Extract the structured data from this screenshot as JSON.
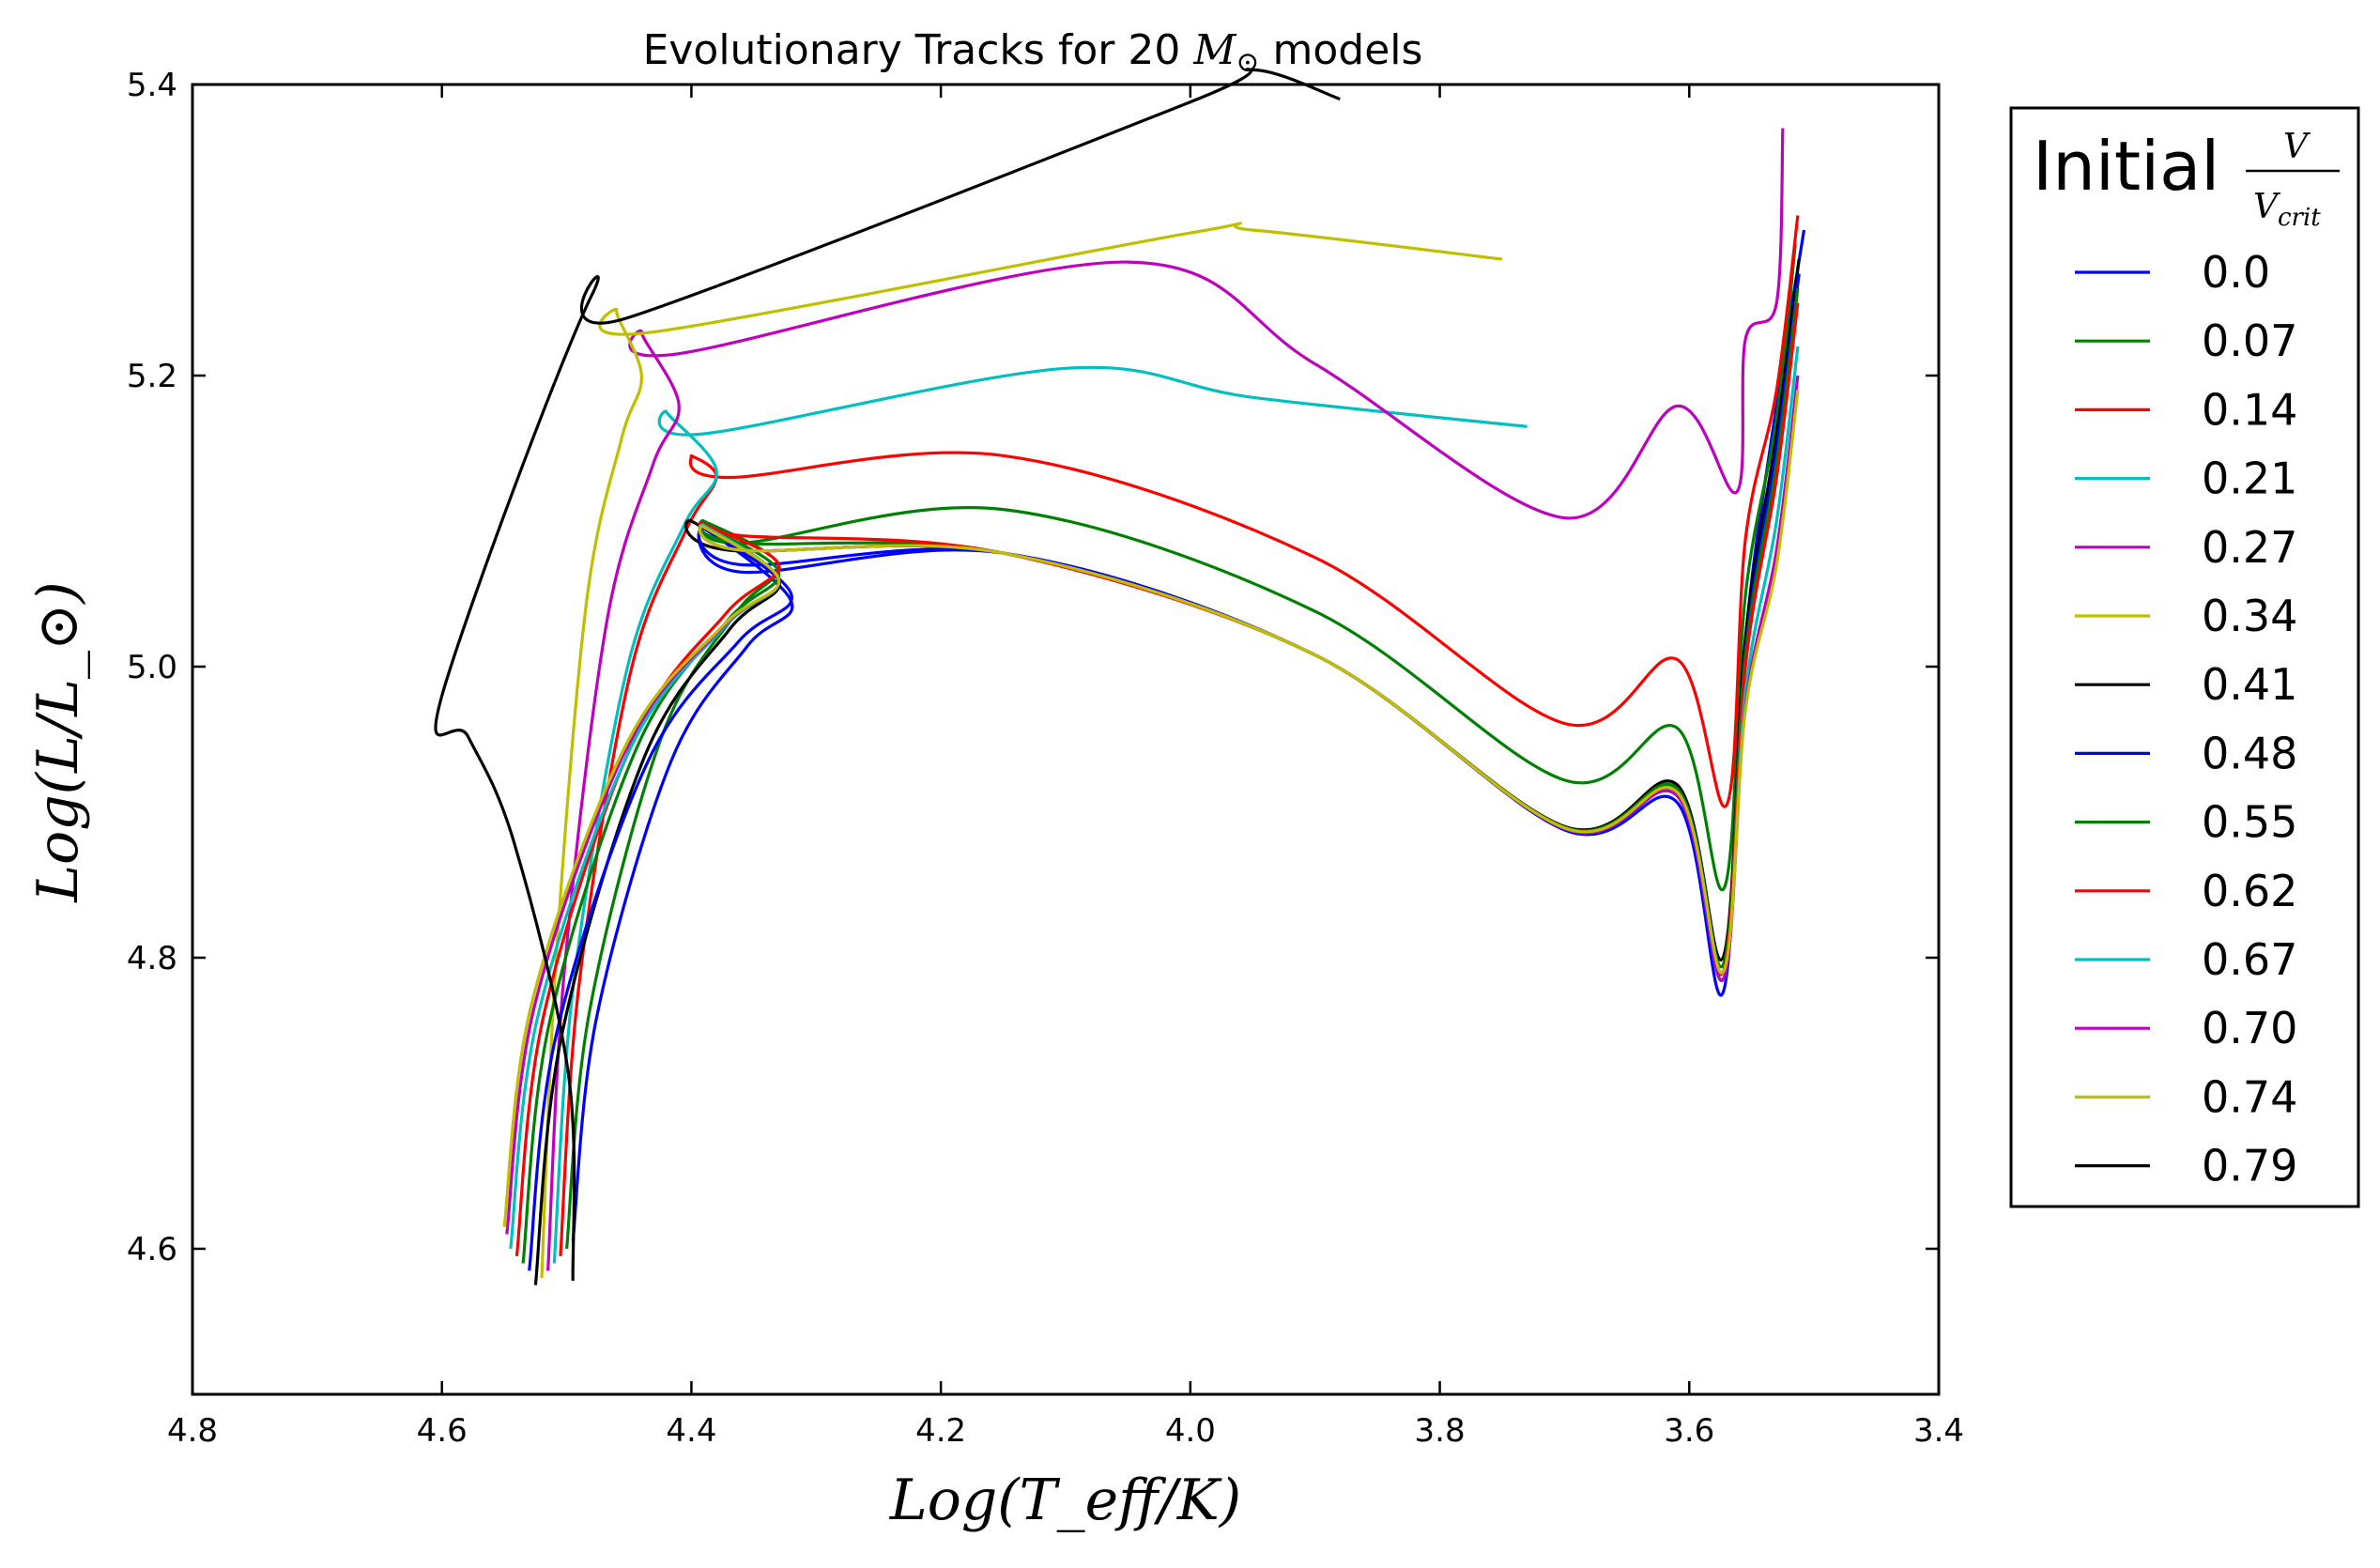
{
  "chart_data": {
    "type": "line",
    "title": {
      "prefix": "Evolutionary Tracks for 20 ",
      "math": "M",
      "math_sub": "⊙",
      "suffix": "  models"
    },
    "xlabel": "Log(T_eff/K)",
    "ylabel": "Log(L/L_⊙)",
    "xlim": [
      4.8,
      3.4
    ],
    "ylim": [
      4.5,
      5.4
    ],
    "x_ticks": [
      "4.8",
      "4.6",
      "4.4",
      "4.2",
      "4.0",
      "3.8",
      "3.6",
      "3.4"
    ],
    "y_ticks": [
      "4.6",
      "4.8",
      "5.0",
      "5.2",
      "5.4"
    ],
    "grid": false,
    "legend": {
      "placement": "outside-right",
      "title_word": "Initial",
      "title_num": "V",
      "title_den": "V",
      "title_den_sub": "crit"
    },
    "series": [
      {
        "name": "0.0",
        "color": "#0000ff",
        "zams": [
          4.495,
          4.605
        ],
        "turnoff": [
          4.32,
          5.045
        ],
        "hook": [
          4.39,
          5.095
        ],
        "trough": [
          3.573,
          4.776
        ],
        "top": [
          3.508,
          5.3
        ]
      },
      {
        "name": "0.07",
        "color": "#008000",
        "zams": [
          4.5,
          4.6
        ],
        "turnoff": [
          4.33,
          5.07
        ],
        "hook": [
          4.39,
          5.1
        ],
        "plateau": [
          4.15,
          5.108
        ],
        "trough": [
          3.572,
          4.848
        ],
        "top": [
          3.515,
          5.29
        ]
      },
      {
        "name": "0.14",
        "color": "#ff0000",
        "zams": [
          4.505,
          4.595
        ],
        "turnoff": [
          4.38,
          5.13
        ],
        "hook": [
          4.4,
          5.145
        ],
        "plateau": [
          4.15,
          5.145
        ],
        "trough": [
          3.57,
          4.905
        ],
        "top": [
          3.513,
          5.31
        ]
      },
      {
        "name": "0.21",
        "color": "#00bfbf",
        "zams": [
          4.51,
          4.59
        ],
        "turnoff": [
          4.38,
          5.135
        ],
        "hook": [
          4.42,
          5.175
        ],
        "plateau": [
          4.1,
          5.205
        ],
        "end": [
          3.73,
          5.165
        ]
      },
      {
        "name": "0.27",
        "color": "#bf00bf",
        "zams": [
          4.515,
          4.585
        ],
        "turnoff": [
          4.41,
          5.18
        ],
        "hook": [
          4.44,
          5.23
        ],
        "plateau": [
          4.05,
          5.278
        ],
        "trough": [
          3.562,
          5.12
        ],
        "top": [
          3.525,
          5.37
        ]
      },
      {
        "name": "0.34",
        "color": "#bfbf00",
        "zams": [
          4.52,
          4.58
        ],
        "turnoff": [
          4.44,
          5.2
        ],
        "hook": [
          4.46,
          5.245
        ],
        "plateau": [
          4.0,
          5.298
        ],
        "end": [
          3.75,
          5.28
        ]
      },
      {
        "name": "0.41",
        "color": "#000000",
        "zams": [
          4.525,
          4.575
        ],
        "turnoff": [
          4.33,
          5.06
        ],
        "hook": [
          4.4,
          5.1
        ],
        "trough": [
          3.573,
          4.8
        ],
        "top": [
          3.512,
          5.28
        ]
      },
      {
        "name": "0.48",
        "color": "#0000ff",
        "zams": [
          4.53,
          4.585
        ],
        "turnoff": [
          4.32,
          5.05
        ],
        "hook": [
          4.39,
          5.095
        ],
        "trough": [
          3.573,
          4.79
        ],
        "top": [
          3.512,
          5.27
        ]
      },
      {
        "name": "0.55",
        "color": "#008000",
        "zams": [
          4.535,
          4.59
        ],
        "turnoff": [
          4.33,
          5.065
        ],
        "hook": [
          4.39,
          5.097
        ],
        "trough": [
          3.573,
          4.795
        ],
        "top": [
          3.513,
          5.26
        ]
      },
      {
        "name": "0.62",
        "color": "#ff0000",
        "zams": [
          4.54,
          4.595
        ],
        "turnoff": [
          4.33,
          5.07
        ],
        "hook": [
          4.39,
          5.098
        ],
        "trough": [
          3.573,
          4.79
        ],
        "top": [
          3.513,
          5.25
        ]
      },
      {
        "name": "0.67",
        "color": "#00bfbf",
        "zams": [
          4.545,
          4.6
        ],
        "turnoff": [
          4.33,
          5.06
        ],
        "hook": [
          4.39,
          5.097
        ],
        "trough": [
          3.573,
          4.785
        ],
        "top": [
          3.513,
          5.22
        ]
      },
      {
        "name": "0.70",
        "color": "#bf00bf",
        "zams": [
          4.548,
          4.61
        ],
        "turnoff": [
          4.33,
          5.06
        ],
        "hook": [
          4.39,
          5.096
        ],
        "trough": [
          3.573,
          4.785
        ],
        "top": [
          3.513,
          5.2
        ]
      },
      {
        "name": "0.74",
        "color": "#bfbf00",
        "zams": [
          4.55,
          4.615
        ],
        "turnoff": [
          4.33,
          5.06
        ],
        "hook": [
          4.39,
          5.096
        ],
        "trough": [
          3.573,
          4.79
        ],
        "top": [
          3.513,
          5.19
        ]
      },
      {
        "name": "0.79",
        "color": "#000000",
        "zams": [
          4.495,
          4.578
        ],
        "turnoff": [
          4.6,
          4.98
        ],
        "hook": [
          4.48,
          5.255
        ],
        "plateau": [
          4.0,
          5.388
        ],
        "end": [
          3.88,
          5.39
        ]
      }
    ]
  }
}
